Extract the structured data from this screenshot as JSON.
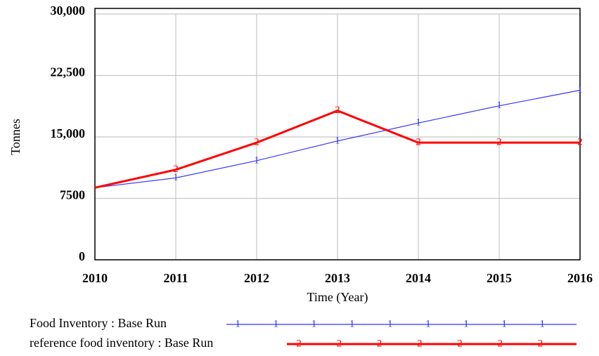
{
  "chart_data": {
    "type": "line",
    "y_label": "Tonnes",
    "x_label": "Time (Year)",
    "x": [
      2010,
      2011,
      2012,
      2013,
      2014,
      2015,
      2016
    ],
    "xlim": [
      2010,
      2016
    ],
    "xticks": [
      2010,
      2011,
      2012,
      2013,
      2014,
      2015,
      2016
    ],
    "ylim": [
      0,
      30000
    ],
    "yticks": [
      0,
      {
        "value": 7500,
        "label": "7500"
      },
      {
        "value": 15000,
        "label": "15,000"
      },
      {
        "value": 22500,
        "label": "22,500"
      },
      {
        "value": 30000,
        "label": "30,000"
      }
    ],
    "grid": true,
    "series": [
      {
        "name": "Food Inventory : Base Run",
        "marker": "1",
        "color": "#3333ff",
        "width": 1.2,
        "values": [
          8800,
          10000,
          12100,
          14500,
          16700,
          18800,
          20700
        ]
      },
      {
        "name": "reference food inventory : Base Run",
        "marker": "2",
        "color": "#ff0000",
        "width": 3,
        "values": [
          8800,
          11000,
          14300,
          18200,
          14300,
          14300,
          14300
        ]
      }
    ]
  }
}
